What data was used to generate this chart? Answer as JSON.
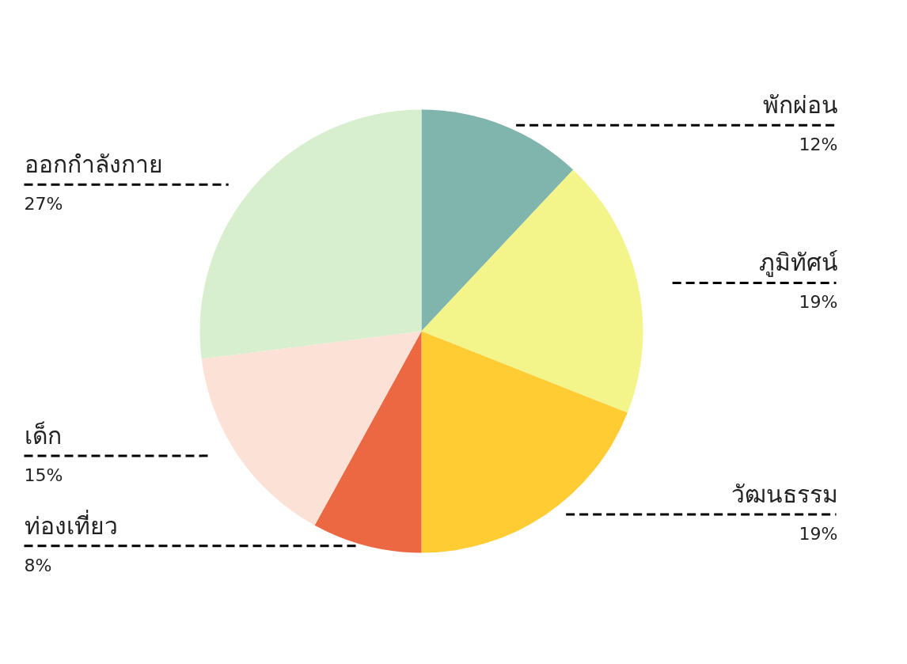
{
  "chart_data": {
    "type": "pie",
    "categories": [
      "พักผ่อน",
      "ภูมิทัศน์",
      "วัฒนธรรม",
      "ท่องเที่ยว",
      "เด็ก",
      "ออกกำลังกาย"
    ],
    "values": [
      12,
      19,
      19,
      8,
      15,
      27
    ],
    "colors": [
      "#80b5ad",
      "#f3f58a",
      "#ffcc33",
      "#ec6843",
      "#fbe1d6",
      "#d8efcf"
    ],
    "value_labels": [
      "12%",
      "19%",
      "19%",
      "8%",
      "15%",
      "27%"
    ]
  }
}
